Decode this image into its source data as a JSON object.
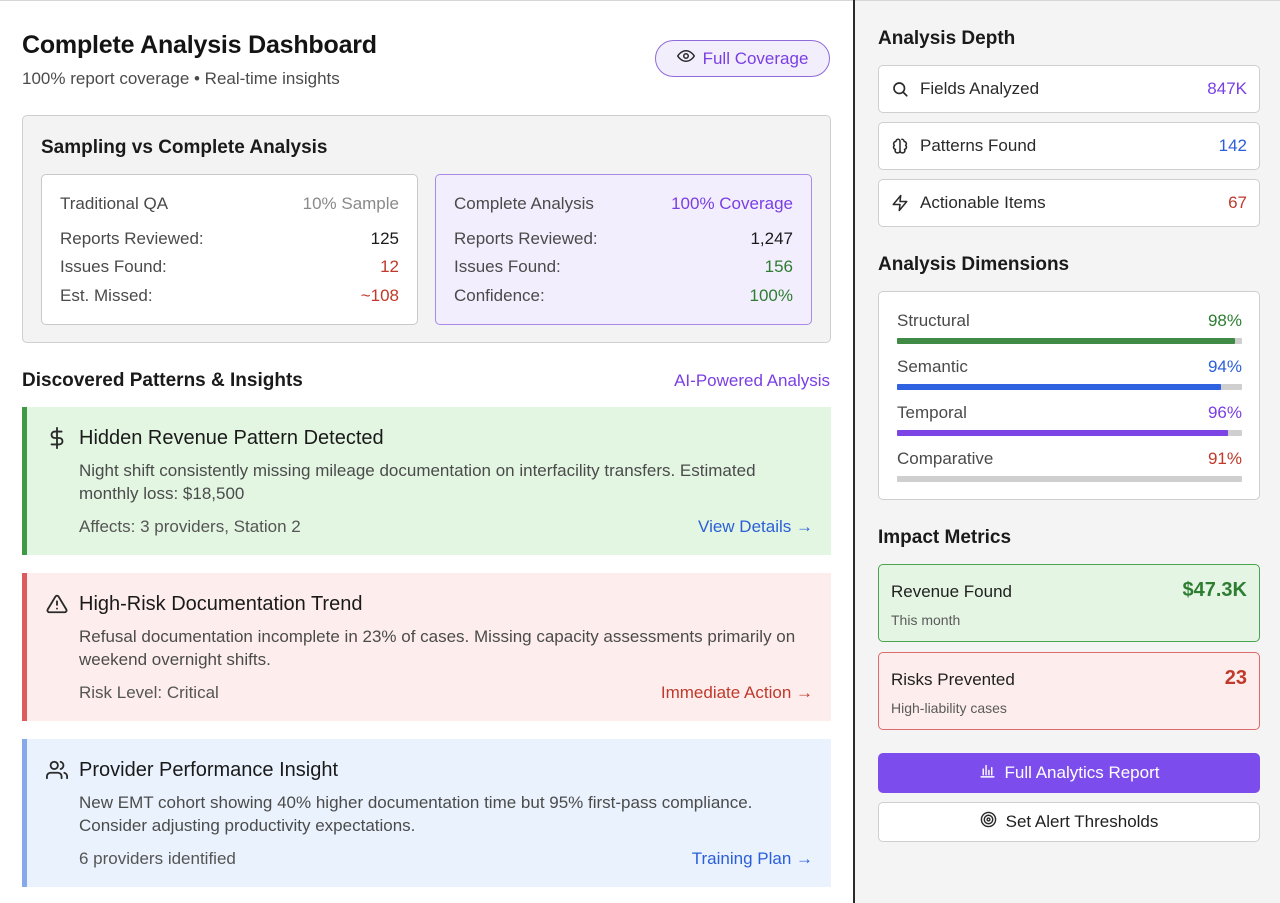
{
  "header": {
    "title": "Complete Analysis Dashboard",
    "subtitle": "100% report coverage • Real-time insights",
    "coverage_label": "Full Coverage"
  },
  "comparison": {
    "title": "Sampling vs Complete Analysis",
    "traditional": {
      "name": "Traditional QA",
      "tag": "10% Sample",
      "rows": [
        {
          "label": "Reports Reviewed:",
          "value": "125"
        },
        {
          "label": "Issues Found:",
          "value": "12"
        },
        {
          "label": "Est. Missed:",
          "value": "~108"
        }
      ]
    },
    "complete": {
      "name": "Complete Analysis",
      "tag": "100% Coverage",
      "rows": [
        {
          "label": "Reports Reviewed:",
          "value": "1,247"
        },
        {
          "label": "Issues Found:",
          "value": "156"
        },
        {
          "label": "Confidence:",
          "value": "100%"
        }
      ]
    }
  },
  "insights": {
    "title": "Discovered Patterns & Insights",
    "ai_label": "AI-Powered Analysis",
    "items": [
      {
        "icon": "dollar-icon",
        "title": "Hidden Revenue Pattern Detected",
        "body": "Night shift consistently missing mileage documentation on interfacility transfers. Estimated monthly loss: $18,500",
        "footer": "Affects: 3 providers, Station 2",
        "action": "View Details →"
      },
      {
        "icon": "warning-icon",
        "title": "High-Risk Documentation Trend",
        "body": "Refusal documentation incomplete in 23% of cases. Missing capacity assessments primarily on weekend overnight shifts.",
        "footer": "Risk Level: Critical",
        "action": "Immediate Action →"
      },
      {
        "icon": "users-icon",
        "title": "Provider Performance Insight",
        "body": "New EMT cohort showing 40% higher documentation time but 95% first-pass compliance. Consider adjusting productivity expectations.",
        "footer": "6 providers identified",
        "action": "Training Plan →"
      }
    ]
  },
  "sidebar": {
    "depth_title": "Analysis Depth",
    "depth": [
      {
        "icon": "search-icon",
        "label": "Fields Analyzed",
        "value": "847K",
        "color": "#7a3fe4"
      },
      {
        "icon": "brain-icon",
        "label": "Patterns Found",
        "value": "142",
        "color": "#2b5fd9"
      },
      {
        "icon": "lightning-icon",
        "label": "Actionable Items",
        "value": "67",
        "color": "#c0392b"
      }
    ],
    "dimensions_title": "Analysis Dimensions",
    "dimensions": [
      {
        "label": "Structural",
        "value": "98%",
        "level": 0.98,
        "color": "#3f8a44"
      },
      {
        "label": "Semantic",
        "value": "94%",
        "level": 0.94,
        "color": "#2f62e0"
      },
      {
        "label": "Temporal",
        "value": "96%",
        "level": 0.96,
        "color": "#7c44e4"
      },
      {
        "label": "Comparative",
        "value": "91%",
        "level": 0.91,
        "color": "#cfcfcf"
      }
    ],
    "impact_title": "Impact Metrics",
    "impact": [
      {
        "label": "Revenue Found",
        "sub": "This month",
        "value": "$47.3K"
      },
      {
        "label": "Risks Prevented",
        "sub": "High-liability cases",
        "value": "23"
      }
    ],
    "primary_button": "Full Analytics Report",
    "secondary_button": "Set Alert Thresholds"
  }
}
